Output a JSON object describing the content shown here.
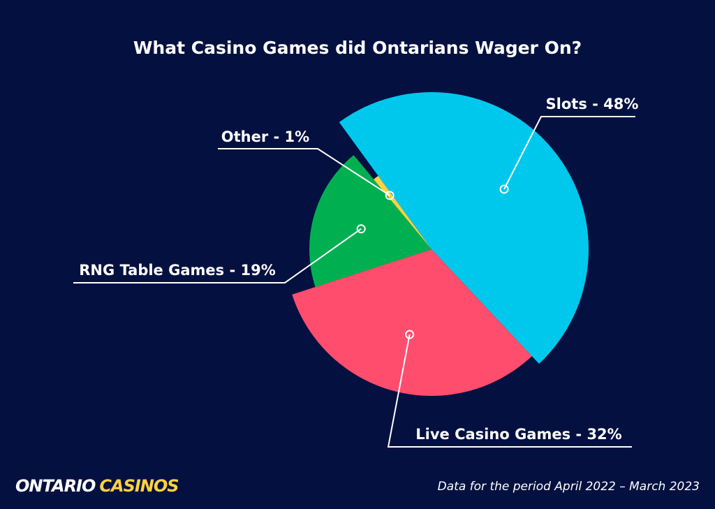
{
  "chart_data": {
    "type": "pie",
    "title": "What Casino Games did Ontarians Wager On?",
    "categories": [
      "Slots - 48%",
      "Live Casino Games - 32%",
      "RNG Table Games - 19%",
      "Other - 1%"
    ],
    "values": [
      48,
      32,
      19,
      1
    ],
    "colors": [
      "#00c8ec",
      "#ff4d6d",
      "#00b050",
      "#ffd23f"
    ],
    "footnote": "Data for the period April 2022 – March 2023",
    "logo": {
      "primary": "ONTARIO",
      "secondary": "CASINOS"
    }
  }
}
